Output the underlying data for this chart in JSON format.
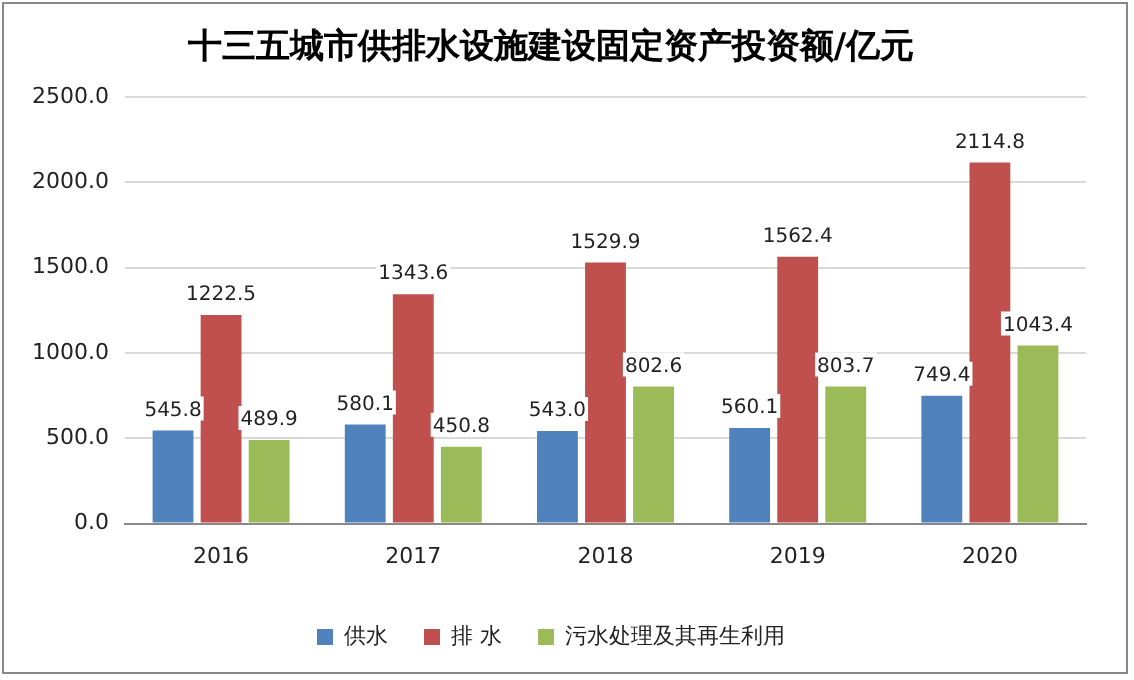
{
  "chart_data": {
    "type": "bar",
    "title": "十三五城市供排水设施建设固定资产投资额/亿元",
    "categories": [
      "2016",
      "2017",
      "2018",
      "2019",
      "2020"
    ],
    "series": [
      {
        "name": "供水",
        "color": "#4f81bd",
        "values": [
          545.8,
          580.1,
          543.0,
          560.1,
          749.4
        ],
        "value_labels": [
          "545.8",
          "580.1",
          "543.0",
          "560.1",
          "749.4"
        ]
      },
      {
        "name": "排 水",
        "color": "#c0504d",
        "values": [
          1222.5,
          1343.6,
          1529.9,
          1562.4,
          2114.8
        ],
        "value_labels": [
          "1222.5",
          "1343.6",
          "1529.9",
          "1562.4",
          "2114.8"
        ]
      },
      {
        "name": "污水处理及其再生利用",
        "color": "#9bbb59",
        "values": [
          489.9,
          450.8,
          802.6,
          803.7,
          1043.4
        ],
        "value_labels": [
          "489.9",
          "450.8",
          "802.6",
          "803.7",
          "1043.4"
        ]
      }
    ],
    "ylim": [
      0,
      2500
    ],
    "yticks": [
      {
        "value": 0,
        "label": "0.0"
      },
      {
        "value": 500,
        "label": "500.0"
      },
      {
        "value": 1000,
        "label": "1000.0"
      },
      {
        "value": 1500,
        "label": "1500.0"
      },
      {
        "value": 2000,
        "label": "2000.0"
      },
      {
        "value": 2500,
        "label": "2500.0"
      }
    ],
    "grid": "y",
    "legend": "bottom"
  }
}
